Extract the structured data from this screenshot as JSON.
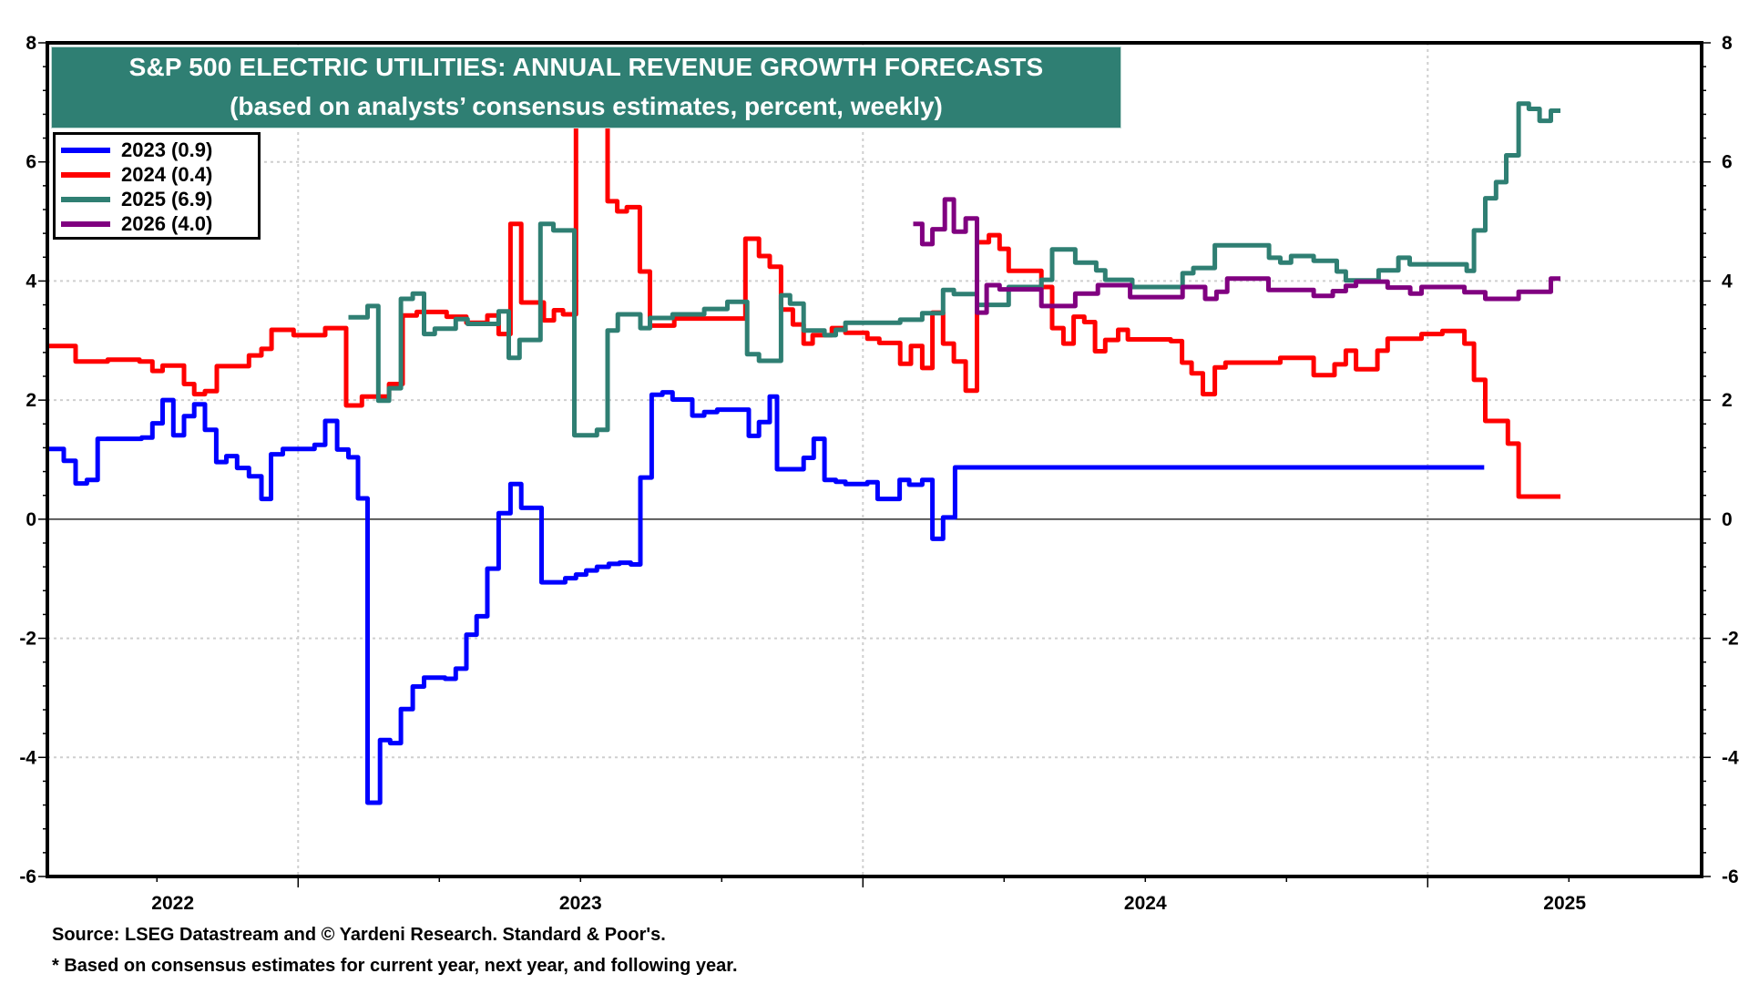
{
  "chart_data": {
    "type": "line",
    "title": "S&P 500 ELECTRIC UTILITIES: ANNUAL REVENUE GROWTH FORECASTS",
    "subtitle": "(based on analysts’ consensus estimates, percent, weekly)",
    "xlabel": "",
    "ylabel": "",
    "x_units": "decimal year",
    "xlim": [
      2022.556,
      2025.485
    ],
    "ylim": [
      -6,
      8
    ],
    "y_ticks": [
      8,
      6,
      4,
      2,
      0,
      -2,
      -4,
      -6
    ],
    "y_tick_labels": [
      "8",
      "6",
      "4",
      "2",
      "0",
      "-2",
      "-4",
      "-6"
    ],
    "x_tick_labels": [
      "2022",
      "2023",
      "2024",
      "2025"
    ],
    "grid": true,
    "dual_y_axis": true,
    "legend_position": "top-left",
    "series": [
      {
        "name": "2023",
        "legend_label": "2023 (0.9)",
        "latest": 0.9,
        "color": "#0000ff",
        "points": [
          [
            2022.558,
            1.18
          ],
          [
            2022.585,
            0.98
          ],
          [
            2022.606,
            0.6
          ],
          [
            2022.626,
            0.66
          ],
          [
            2022.645,
            1.35
          ],
          [
            2022.723,
            1.37
          ],
          [
            2022.742,
            1.61
          ],
          [
            2022.76,
            2.0
          ],
          [
            2022.779,
            1.41
          ],
          [
            2022.798,
            1.73
          ],
          [
            2022.816,
            1.93
          ],
          [
            2022.835,
            1.5
          ],
          [
            2022.855,
            0.96
          ],
          [
            2022.873,
            1.06
          ],
          [
            2022.892,
            0.86
          ],
          [
            2022.913,
            0.72
          ],
          [
            2022.935,
            0.34
          ],
          [
            2022.952,
            1.09
          ],
          [
            2022.973,
            1.18
          ],
          [
            2023.029,
            1.25
          ],
          [
            2023.048,
            1.65
          ],
          [
            2023.069,
            1.17
          ],
          [
            2023.089,
            1.04
          ],
          [
            2023.106,
            0.35
          ],
          [
            2023.123,
            -4.76
          ],
          [
            2023.145,
            -3.71
          ],
          [
            2023.163,
            -3.76
          ],
          [
            2023.182,
            -3.19
          ],
          [
            2023.203,
            -2.81
          ],
          [
            2023.223,
            -2.66
          ],
          [
            2023.26,
            -2.68
          ],
          [
            2023.279,
            -2.51
          ],
          [
            2023.298,
            -1.94
          ],
          [
            2023.316,
            -1.63
          ],
          [
            2023.335,
            -0.83
          ],
          [
            2023.355,
            0.1
          ],
          [
            2023.376,
            0.59
          ],
          [
            2023.395,
            0.19
          ],
          [
            2023.431,
            -1.06
          ],
          [
            2023.473,
            -0.99
          ],
          [
            2023.492,
            -0.93
          ],
          [
            2023.51,
            -0.86
          ],
          [
            2023.529,
            -0.8
          ],
          [
            2023.55,
            -0.75
          ],
          [
            2023.569,
            -0.73
          ],
          [
            2023.589,
            -0.76
          ],
          [
            2023.606,
            0.7
          ],
          [
            2023.626,
            2.09
          ],
          [
            2023.645,
            2.13
          ],
          [
            2023.663,
            2.01
          ],
          [
            2023.698,
            1.74
          ],
          [
            2023.719,
            1.8
          ],
          [
            2023.742,
            1.84
          ],
          [
            2023.798,
            1.4
          ],
          [
            2023.816,
            1.63
          ],
          [
            2023.835,
            2.06
          ],
          [
            2023.848,
            0.84
          ],
          [
            2023.895,
            1.03
          ],
          [
            2023.913,
            1.35
          ],
          [
            2023.932,
            0.66
          ],
          [
            2023.952,
            0.63
          ],
          [
            2023.969,
            0.59
          ],
          [
            2024.008,
            0.62
          ],
          [
            2024.026,
            0.34
          ],
          [
            2024.065,
            0.66
          ],
          [
            2024.082,
            0.58
          ],
          [
            2024.105,
            0.66
          ],
          [
            2024.123,
            -0.33
          ],
          [
            2024.142,
            0.03
          ],
          [
            2024.163,
            0.87
          ],
          [
            2025.1,
            0.87
          ]
        ]
      },
      {
        "name": "2024",
        "legend_label": "2024 (0.4)",
        "latest": 0.4,
        "color": "#ff0000",
        "points": [
          [
            2022.558,
            2.91
          ],
          [
            2022.606,
            2.65
          ],
          [
            2022.663,
            2.68
          ],
          [
            2022.719,
            2.65
          ],
          [
            2022.742,
            2.49
          ],
          [
            2022.76,
            2.58
          ],
          [
            2022.798,
            2.27
          ],
          [
            2022.816,
            2.1
          ],
          [
            2022.835,
            2.15
          ],
          [
            2022.856,
            2.57
          ],
          [
            2022.913,
            2.75
          ],
          [
            2022.935,
            2.86
          ],
          [
            2022.953,
            3.18
          ],
          [
            2022.992,
            3.09
          ],
          [
            2023.048,
            3.21
          ],
          [
            2023.085,
            1.91
          ],
          [
            2023.113,
            2.06
          ],
          [
            2023.161,
            2.27
          ],
          [
            2023.185,
            3.42
          ],
          [
            2023.21,
            3.48
          ],
          [
            2023.263,
            3.4
          ],
          [
            2023.298,
            3.3
          ],
          [
            2023.335,
            3.42
          ],
          [
            2023.355,
            3.11
          ],
          [
            2023.376,
            4.96
          ],
          [
            2023.395,
            3.64
          ],
          [
            2023.435,
            3.34
          ],
          [
            2023.453,
            3.51
          ],
          [
            2023.469,
            3.44
          ],
          [
            2023.492,
            7.5
          ],
          [
            2023.548,
            5.34
          ],
          [
            2023.565,
            5.17
          ],
          [
            2023.582,
            5.24
          ],
          [
            2023.605,
            4.16
          ],
          [
            2023.623,
            3.25
          ],
          [
            2023.666,
            3.37
          ],
          [
            2023.792,
            4.71
          ],
          [
            2023.816,
            4.42
          ],
          [
            2023.835,
            4.24
          ],
          [
            2023.855,
            3.52
          ],
          [
            2023.876,
            3.27
          ],
          [
            2023.895,
            2.95
          ],
          [
            2023.911,
            3.09
          ],
          [
            2023.945,
            3.21
          ],
          [
            2023.969,
            3.13
          ],
          [
            2024.008,
            3.03
          ],
          [
            2024.029,
            2.96
          ],
          [
            2024.066,
            2.61
          ],
          [
            2024.085,
            2.91
          ],
          [
            2024.105,
            2.54
          ],
          [
            2024.123,
            3.47
          ],
          [
            2024.142,
            2.95
          ],
          [
            2024.161,
            2.65
          ],
          [
            2024.182,
            2.16
          ],
          [
            2024.202,
            4.65
          ],
          [
            2024.223,
            4.77
          ],
          [
            2024.242,
            4.54
          ],
          [
            2024.258,
            4.17
          ],
          [
            2024.316,
            3.9
          ],
          [
            2024.335,
            3.21
          ],
          [
            2024.355,
            2.95
          ],
          [
            2024.373,
            3.4
          ],
          [
            2024.392,
            3.31
          ],
          [
            2024.411,
            2.82
          ],
          [
            2024.429,
            3.01
          ],
          [
            2024.452,
            3.18
          ],
          [
            2024.469,
            3.02
          ],
          [
            2024.545,
            2.99
          ],
          [
            2024.565,
            2.63
          ],
          [
            2024.582,
            2.45
          ],
          [
            2024.602,
            2.1
          ],
          [
            2024.623,
            2.55
          ],
          [
            2024.642,
            2.63
          ],
          [
            2024.739,
            2.71
          ],
          [
            2024.798,
            2.42
          ],
          [
            2024.835,
            2.6
          ],
          [
            2024.855,
            2.83
          ],
          [
            2024.873,
            2.52
          ],
          [
            2024.911,
            2.83
          ],
          [
            2024.929,
            3.03
          ],
          [
            2024.989,
            3.11
          ],
          [
            2025.026,
            3.16
          ],
          [
            2025.065,
            2.95
          ],
          [
            2025.082,
            2.34
          ],
          [
            2025.102,
            1.65
          ],
          [
            2025.142,
            1.27
          ],
          [
            2025.161,
            0.38
          ],
          [
            2025.235,
            0.38
          ]
        ]
      },
      {
        "name": "2025",
        "legend_label": "2025 (6.9)",
        "latest": 6.9,
        "color": "#2f7f73",
        "points": [
          [
            2023.089,
            3.39
          ],
          [
            2023.123,
            3.58
          ],
          [
            2023.142,
            1.99
          ],
          [
            2023.161,
            2.2
          ],
          [
            2023.182,
            3.7
          ],
          [
            2023.203,
            3.79
          ],
          [
            2023.223,
            3.11
          ],
          [
            2023.242,
            3.2
          ],
          [
            2023.279,
            3.36
          ],
          [
            2023.3,
            3.28
          ],
          [
            2023.355,
            3.49
          ],
          [
            2023.373,
            2.71
          ],
          [
            2023.392,
            3.01
          ],
          [
            2023.429,
            4.96
          ],
          [
            2023.452,
            4.85
          ],
          [
            2023.489,
            1.41
          ],
          [
            2023.529,
            1.5
          ],
          [
            2023.548,
            3.17
          ],
          [
            2023.566,
            3.44
          ],
          [
            2023.606,
            3.21
          ],
          [
            2023.623,
            3.38
          ],
          [
            2023.663,
            3.44
          ],
          [
            2023.719,
            3.53
          ],
          [
            2023.76,
            3.65
          ],
          [
            2023.795,
            2.77
          ],
          [
            2023.816,
            2.66
          ],
          [
            2023.855,
            3.76
          ],
          [
            2023.871,
            3.62
          ],
          [
            2023.895,
            3.17
          ],
          [
            2023.932,
            3.09
          ],
          [
            2023.952,
            3.18
          ],
          [
            2023.969,
            3.3
          ],
          [
            2024.066,
            3.35
          ],
          [
            2024.105,
            3.46
          ],
          [
            2024.142,
            3.85
          ],
          [
            2024.161,
            3.78
          ],
          [
            2024.202,
            3.6
          ],
          [
            2024.258,
            3.9
          ],
          [
            2024.316,
            4.02
          ],
          [
            2024.335,
            4.53
          ],
          [
            2024.376,
            4.31
          ],
          [
            2024.413,
            4.18
          ],
          [
            2024.429,
            4.02
          ],
          [
            2024.477,
            3.9
          ],
          [
            2024.566,
            4.13
          ],
          [
            2024.585,
            4.22
          ],
          [
            2024.623,
            4.6
          ],
          [
            2024.719,
            4.39
          ],
          [
            2024.739,
            4.31
          ],
          [
            2024.758,
            4.42
          ],
          [
            2024.798,
            4.34
          ],
          [
            2024.839,
            4.16
          ],
          [
            2024.855,
            4.01
          ],
          [
            2024.913,
            4.18
          ],
          [
            2024.948,
            4.39
          ],
          [
            2024.968,
            4.28
          ],
          [
            2025.069,
            4.17
          ],
          [
            2025.082,
            4.85
          ],
          [
            2025.102,
            5.39
          ],
          [
            2025.121,
            5.66
          ],
          [
            2025.139,
            6.11
          ],
          [
            2025.161,
            6.98
          ],
          [
            2025.179,
            6.89
          ],
          [
            2025.198,
            6.69
          ],
          [
            2025.218,
            6.86
          ],
          [
            2025.235,
            6.86
          ]
        ]
      },
      {
        "name": "2026",
        "legend_label": "2026 (4.0)",
        "latest": 4.0,
        "color": "#800080",
        "points": [
          [
            2024.089,
            4.96
          ],
          [
            2024.105,
            4.62
          ],
          [
            2024.123,
            4.87
          ],
          [
            2024.145,
            5.37
          ],
          [
            2024.161,
            4.83
          ],
          [
            2024.182,
            5.05
          ],
          [
            2024.202,
            3.47
          ],
          [
            2024.219,
            3.93
          ],
          [
            2024.242,
            3.86
          ],
          [
            2024.316,
            3.58
          ],
          [
            2024.376,
            3.79
          ],
          [
            2024.416,
            3.93
          ],
          [
            2024.473,
            3.73
          ],
          [
            2024.566,
            3.9
          ],
          [
            2024.606,
            3.7
          ],
          [
            2024.626,
            3.82
          ],
          [
            2024.645,
            4.04
          ],
          [
            2024.718,
            3.85
          ],
          [
            2024.798,
            3.75
          ],
          [
            2024.832,
            3.83
          ],
          [
            2024.855,
            3.92
          ],
          [
            2024.873,
            3.99
          ],
          [
            2024.929,
            3.89
          ],
          [
            2024.969,
            3.79
          ],
          [
            2024.989,
            3.9
          ],
          [
            2025.065,
            3.81
          ],
          [
            2025.102,
            3.7
          ],
          [
            2025.161,
            3.82
          ],
          [
            2025.218,
            4.04
          ],
          [
            2025.235,
            4.04
          ]
        ]
      }
    ]
  },
  "header": {
    "title": "S&P 500 ELECTRIC UTILITIES: ANNUAL REVENUE GROWTH FORECASTS",
    "subtitle": "(based on analysts’ consensus estimates, percent, weekly)"
  },
  "legend": {
    "items": [
      {
        "label": "2023 (0.9)",
        "color": "#0000ff"
      },
      {
        "label": "2024 (0.4)",
        "color": "#ff0000"
      },
      {
        "label": "2025 (6.9)",
        "color": "#2f7f73"
      },
      {
        "label": "2026 (4.0)",
        "color": "#800080"
      }
    ]
  },
  "footer": {
    "source": "Source: LSEG Datastream and © Yardeni Research. Standard & Poor's.",
    "note": "* Based on consensus estimates for current year, next year, and following year."
  }
}
